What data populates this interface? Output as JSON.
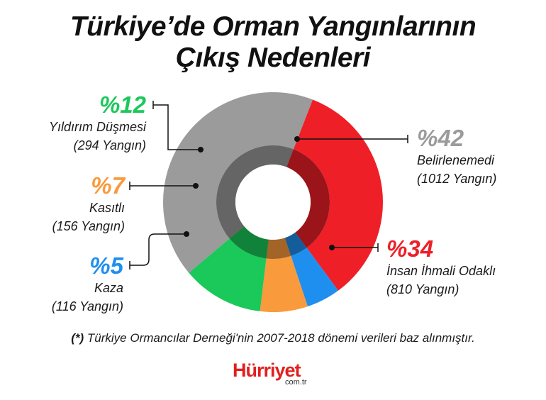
{
  "title": {
    "line1": "Türkiye’de Orman Yangınlarının",
    "line2": "Çıkış Nedenleri"
  },
  "chart_data": {
    "type": "pie",
    "style": "donut",
    "slices": [
      {
        "label": "Belirlenemedi",
        "percent": 42,
        "percent_label": "%42",
        "count_label": "(1012 Yangın)",
        "color": "#9b9b9b"
      },
      {
        "label": "İnsan İhmali Odaklı",
        "percent": 34,
        "percent_label": "%34",
        "count_label": "(810 Yangın)",
        "color": "#ee1f27"
      },
      {
        "label": "Kaza",
        "percent": 5,
        "percent_label": "%5",
        "count_label": "(116 Yangın)",
        "color": "#1f8fef"
      },
      {
        "label": "Kasıtlı",
        "percent": 7,
        "percent_label": "%7",
        "count_label": "(156 Yangın)",
        "color": "#f99a3c"
      },
      {
        "label": "Yıldırım Düşmesi",
        "percent": 12,
        "percent_label": "%12",
        "count_label": "(294 Yangın)",
        "color": "#1bc85a"
      }
    ]
  },
  "footnote": {
    "marker": "(*)",
    "text": "Türkiye Ormancılar Derneği'nin 2007-2018 dönemi verileri baz alınmıştır."
  },
  "logo": {
    "brand": "Hürriyet",
    "domain": "com.tr"
  }
}
